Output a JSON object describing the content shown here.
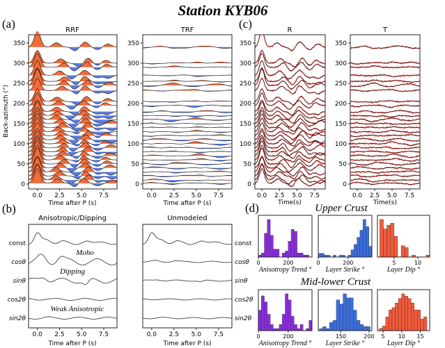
{
  "title": "Station KYB06",
  "colors": {
    "positive": "#f26b3a",
    "negative": "#5b7fe0",
    "trace": "#222222",
    "synthetic": "#e0201b",
    "purple": "#8b2be2",
    "blue": "#3a6ee0",
    "red": "#f25a3a"
  },
  "panel_a": {
    "label": "(a)",
    "ylabel": "Back-azimuth (°)",
    "yticks": [
      "0",
      "50",
      "100",
      "150",
      "200",
      "250",
      "300",
      "350"
    ],
    "xticks": [
      "0.0",
      "2.5",
      "5.0",
      "7.5"
    ],
    "xlabel": "Time after P (s)",
    "left_title": "RRF",
    "right_title": "TRF"
  },
  "panel_b": {
    "label": "(b)",
    "left_title": "Anisotropic/Dipping",
    "right_title": "Unmodeled",
    "components": [
      "const",
      "cosθ",
      "sinθ",
      "cos2θ",
      "sin2θ"
    ],
    "annotations": [
      "Moho",
      "Dipping",
      "Weak Anisotropic"
    ],
    "xticks": [
      "0.0",
      "2.5",
      "5.0",
      "7.5"
    ],
    "xlabel": "Time after P (s)"
  },
  "panel_c": {
    "label": "(c)",
    "left_title": "R",
    "right_title": "T",
    "yticks": [
      "0",
      "50",
      "100",
      "150",
      "200",
      "250",
      "300",
      "350"
    ],
    "xticks": [
      "0.0",
      "2.5",
      "5.0",
      "7.5"
    ],
    "xlabel": "Time(s)"
  },
  "panel_d": {
    "label": "(d)",
    "upper_title": "Upper Crust",
    "lower_title": "Mid-lower Crust"
  },
  "chart_data": [
    {
      "type": "bar",
      "title": "Upper Crust",
      "xlabel": "Anisotropy Trend °",
      "xlim": [
        0,
        360
      ],
      "xticks": [
        0,
        200
      ],
      "bin_width": 20,
      "values": [
        1,
        2,
        12,
        19,
        11,
        4,
        4,
        0,
        2,
        3,
        8,
        14,
        13,
        2,
        2,
        1,
        1,
        0
      ],
      "color": "purple"
    },
    {
      "type": "bar",
      "title": "Upper Crust",
      "xlabel": "Layer Strike °",
      "xlim": [
        0,
        360
      ],
      "xticks": [
        0,
        200
      ],
      "bin_width": 20,
      "values": [
        2,
        2,
        1,
        1,
        0,
        1,
        0,
        1,
        1,
        0,
        1,
        4,
        7,
        11,
        15,
        21,
        17,
        6
      ],
      "color": "blue"
    },
    {
      "type": "bar",
      "title": "Upper Crust",
      "xlabel": "Layer Dip °",
      "xlim": [
        1.5,
        12.5
      ],
      "xticks": [
        5,
        10
      ],
      "bin_start": 2,
      "bin_width": 0.75,
      "values": [
        20,
        15,
        17,
        18,
        11,
        0,
        6,
        5,
        0,
        1,
        0,
        0,
        0,
        1
      ],
      "color": "red"
    },
    {
      "type": "bar",
      "title": "Mid-lower Crust",
      "xlabel": "Anisotropy Trend °",
      "xlim": [
        0,
        360
      ],
      "xticks": [
        0,
        200
      ],
      "bin_width": 20,
      "values": [
        10,
        17,
        14,
        8,
        3,
        1,
        1,
        3,
        8,
        18,
        15,
        7,
        3,
        1,
        3,
        0,
        1,
        5
      ],
      "color": "purple"
    },
    {
      "type": "bar",
      "title": "Mid-lower Crust",
      "xlabel": "Layer Strike °",
      "xlim": [
        110,
        205
      ],
      "xticks": [
        150,
        200
      ],
      "bin_start": 112,
      "bin_width": 6,
      "values": [
        1,
        2,
        1,
        4,
        5,
        15,
        13,
        18,
        16,
        16,
        10,
        5,
        3,
        2,
        2
      ],
      "color": "blue"
    },
    {
      "type": "bar",
      "title": "Mid-lower Crust",
      "xlabel": "Layer Dip °",
      "xlim": [
        3.5,
        17.5
      ],
      "xticks": [
        5,
        10,
        15
      ],
      "bin_start": 4,
      "bin_width": 0.85,
      "values": [
        1,
        2,
        6,
        9,
        10,
        12,
        14,
        16,
        15,
        14,
        12,
        9,
        9,
        5,
        6
      ],
      "color": "red"
    }
  ]
}
